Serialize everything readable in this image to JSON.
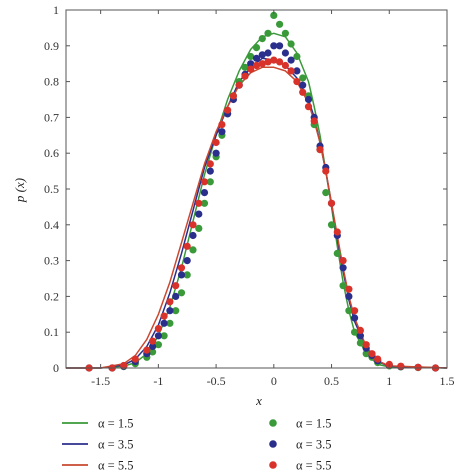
{
  "chart_data": {
    "type": "scatter",
    "title": "",
    "xlabel": "x",
    "ylabel": "p (x)",
    "xlim": [
      -1.8,
      1.5
    ],
    "ylim": [
      0,
      1
    ],
    "xticks": [
      -1.5,
      -1,
      -0.5,
      0,
      0.5,
      1,
      1.5
    ],
    "xtick_labels": [
      "-1.5",
      "-1",
      "-0.5",
      "0",
      "0.5",
      "1",
      "1.5"
    ],
    "yticks": [
      0,
      0.1,
      0.2,
      0.3,
      0.4,
      0.5,
      0.6,
      0.7,
      0.8,
      0.9,
      1
    ],
    "ytick_labels": [
      "0",
      "0.1",
      "0.2",
      "0.3",
      "0.4",
      "0.5",
      "0.6",
      "0.7",
      "0.8",
      "0.9",
      "1"
    ],
    "grid": false,
    "legend_position": "bottom",
    "series": [
      {
        "name": "α = 1.5",
        "kind": "line",
        "color": "#3a9a3a",
        "x": [
          -1.8,
          -1.5,
          -1.3,
          -1.2,
          -1.1,
          -1.0,
          -0.9,
          -0.8,
          -0.7,
          -0.6,
          -0.5,
          -0.4,
          -0.3,
          -0.2,
          -0.1,
          0.0,
          0.1,
          0.2,
          0.3,
          0.35,
          0.4,
          0.45,
          0.5,
          0.55,
          0.6,
          0.65,
          0.7,
          0.8,
          0.9,
          1.0,
          1.5
        ],
        "y": [
          0,
          0,
          0.005,
          0.015,
          0.04,
          0.09,
          0.17,
          0.28,
          0.41,
          0.54,
          0.65,
          0.75,
          0.83,
          0.89,
          0.925,
          0.935,
          0.925,
          0.88,
          0.8,
          0.73,
          0.65,
          0.55,
          0.45,
          0.34,
          0.24,
          0.16,
          0.1,
          0.04,
          0.01,
          0.003,
          0
        ]
      },
      {
        "name": "α = 1.5",
        "kind": "points",
        "color": "#3a9a3a",
        "x": [
          -1.6,
          -1.4,
          -1.3,
          -1.2,
          -1.1,
          -1.05,
          -1.0,
          -0.95,
          -0.9,
          -0.85,
          -0.8,
          -0.75,
          -0.7,
          -0.65,
          -0.6,
          -0.55,
          -0.5,
          -0.45,
          -0.4,
          -0.35,
          -0.3,
          -0.25,
          -0.2,
          -0.15,
          -0.1,
          -0.05,
          0.0,
          0.05,
          0.1,
          0.15,
          0.2,
          0.25,
          0.3,
          0.35,
          0.4,
          0.45,
          0.5,
          0.55,
          0.6,
          0.65,
          0.7,
          0.75,
          0.8,
          0.85,
          0.9,
          1.0,
          1.1,
          1.25,
          1.4
        ],
        "y": [
          0,
          0,
          0.004,
          0.012,
          0.03,
          0.045,
          0.065,
          0.09,
          0.125,
          0.16,
          0.21,
          0.26,
          0.33,
          0.39,
          0.46,
          0.52,
          0.59,
          0.65,
          0.71,
          0.76,
          0.8,
          0.84,
          0.87,
          0.895,
          0.92,
          0.935,
          0.985,
          0.96,
          0.935,
          0.905,
          0.87,
          0.81,
          0.76,
          0.68,
          0.61,
          0.49,
          0.4,
          0.32,
          0.23,
          0.16,
          0.1,
          0.07,
          0.04,
          0.03,
          0.015,
          0.006,
          0.003,
          0.001,
          0
        ]
      },
      {
        "name": "α = 3.5",
        "kind": "line",
        "color": "#2b2f8c",
        "x": [
          -1.8,
          -1.5,
          -1.3,
          -1.2,
          -1.1,
          -1.0,
          -0.9,
          -0.8,
          -0.7,
          -0.6,
          -0.5,
          -0.4,
          -0.3,
          -0.2,
          -0.1,
          0.0,
          0.1,
          0.2,
          0.3,
          0.35,
          0.4,
          0.45,
          0.5,
          0.55,
          0.6,
          0.65,
          0.7,
          0.8,
          0.9,
          1.0,
          1.5
        ],
        "y": [
          0,
          0,
          0.008,
          0.025,
          0.06,
          0.12,
          0.21,
          0.32,
          0.44,
          0.56,
          0.65,
          0.73,
          0.8,
          0.84,
          0.865,
          0.86,
          0.845,
          0.81,
          0.75,
          0.7,
          0.63,
          0.55,
          0.46,
          0.36,
          0.27,
          0.19,
          0.13,
          0.055,
          0.018,
          0.005,
          0
        ]
      },
      {
        "name": "α = 3.5",
        "kind": "points",
        "color": "#2b2f8c",
        "x": [
          -1.6,
          -1.4,
          -1.3,
          -1.2,
          -1.1,
          -1.05,
          -1.0,
          -0.95,
          -0.9,
          -0.85,
          -0.8,
          -0.75,
          -0.7,
          -0.65,
          -0.6,
          -0.55,
          -0.5,
          -0.45,
          -0.4,
          -0.35,
          -0.3,
          -0.25,
          -0.2,
          -0.15,
          -0.1,
          -0.05,
          0.0,
          0.05,
          0.1,
          0.15,
          0.2,
          0.25,
          0.3,
          0.35,
          0.4,
          0.45,
          0.5,
          0.55,
          0.6,
          0.65,
          0.7,
          0.75,
          0.8,
          0.85,
          0.9,
          1.0,
          1.1,
          1.25,
          1.4
        ],
        "y": [
          0,
          0,
          0.005,
          0.018,
          0.04,
          0.06,
          0.09,
          0.125,
          0.16,
          0.2,
          0.26,
          0.3,
          0.37,
          0.43,
          0.49,
          0.55,
          0.6,
          0.66,
          0.71,
          0.75,
          0.79,
          0.82,
          0.85,
          0.865,
          0.875,
          0.88,
          0.9,
          0.9,
          0.88,
          0.86,
          0.83,
          0.79,
          0.75,
          0.7,
          0.62,
          0.56,
          0.46,
          0.37,
          0.28,
          0.2,
          0.14,
          0.09,
          0.055,
          0.035,
          0.02,
          0.008,
          0.004,
          0.002,
          0
        ]
      },
      {
        "name": "α = 5.5",
        "kind": "line",
        "color": "#c94830",
        "x": [
          -1.8,
          -1.5,
          -1.3,
          -1.2,
          -1.1,
          -1.0,
          -0.9,
          -0.8,
          -0.7,
          -0.6,
          -0.5,
          -0.4,
          -0.3,
          -0.2,
          -0.1,
          0.0,
          0.1,
          0.2,
          0.3,
          0.35,
          0.4,
          0.45,
          0.5,
          0.55,
          0.6,
          0.65,
          0.7,
          0.8,
          0.9,
          1.0,
          1.5
        ],
        "y": [
          0,
          0,
          0.012,
          0.035,
          0.08,
          0.15,
          0.24,
          0.35,
          0.46,
          0.57,
          0.66,
          0.73,
          0.79,
          0.825,
          0.84,
          0.84,
          0.83,
          0.8,
          0.74,
          0.69,
          0.63,
          0.55,
          0.46,
          0.37,
          0.28,
          0.2,
          0.14,
          0.06,
          0.02,
          0.006,
          0
        ]
      },
      {
        "name": "α = 5.5",
        "kind": "points",
        "color": "#d9322a",
        "x": [
          -1.6,
          -1.4,
          -1.3,
          -1.2,
          -1.1,
          -1.05,
          -1.0,
          -0.95,
          -0.9,
          -0.85,
          -0.8,
          -0.75,
          -0.7,
          -0.65,
          -0.6,
          -0.55,
          -0.5,
          -0.45,
          -0.4,
          -0.35,
          -0.3,
          -0.25,
          -0.2,
          -0.15,
          -0.1,
          -0.05,
          0.0,
          0.05,
          0.1,
          0.15,
          0.2,
          0.25,
          0.3,
          0.35,
          0.4,
          0.45,
          0.5,
          0.55,
          0.6,
          0.65,
          0.7,
          0.75,
          0.8,
          0.85,
          0.9,
          1.0,
          1.1,
          1.25,
          1.4
        ],
        "y": [
          0,
          0,
          0.007,
          0.025,
          0.05,
          0.075,
          0.11,
          0.145,
          0.185,
          0.23,
          0.28,
          0.34,
          0.4,
          0.46,
          0.52,
          0.57,
          0.63,
          0.68,
          0.72,
          0.76,
          0.79,
          0.815,
          0.835,
          0.845,
          0.85,
          0.855,
          0.86,
          0.855,
          0.845,
          0.83,
          0.8,
          0.77,
          0.73,
          0.69,
          0.61,
          0.55,
          0.46,
          0.38,
          0.3,
          0.22,
          0.16,
          0.105,
          0.065,
          0.04,
          0.025,
          0.01,
          0.005,
          0.002,
          0
        ]
      }
    ]
  }
}
